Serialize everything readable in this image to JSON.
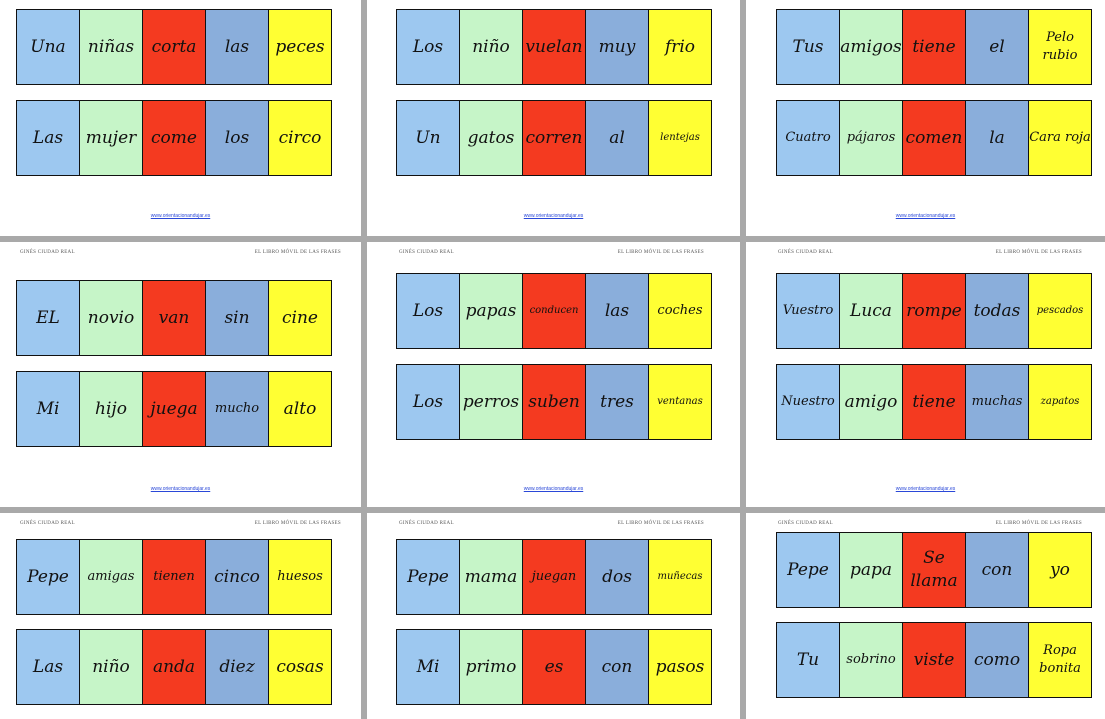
{
  "header": {
    "left": "GINÉS CIUDAD REAL",
    "right": "EL LIBRO MÓVIL DE LAS FRASES"
  },
  "footer_url": "www.orientacionandujar.es",
  "colors": [
    "#9dc8f0",
    "#c6f5c8",
    "#f43a20",
    "#8aaedb",
    "#ffff33"
  ],
  "pages": [
    {
      "strips": [
        [
          "Una",
          "niñas",
          "corta",
          "las",
          "peces"
        ],
        [
          "Las",
          "mujer",
          "come",
          "los",
          "circo"
        ]
      ]
    },
    {
      "strips": [
        [
          "Los",
          "niño",
          "vuelan",
          "muy",
          "frio"
        ],
        [
          "Un",
          "gatos",
          "corren",
          "al",
          "lentejas"
        ]
      ]
    },
    {
      "strips": [
        [
          "Tus",
          "amigos",
          "tiene",
          "el",
          "Pelo rubio"
        ],
        [
          "Cuatro",
          "pájaros",
          "comen",
          "la",
          "Cara roja"
        ]
      ]
    },
    {
      "strips": [
        [
          "EL",
          "novio",
          "van",
          "sin",
          "cine"
        ],
        [
          "Mi",
          "hijo",
          "juega",
          "mucho",
          "alto"
        ]
      ]
    },
    {
      "strips": [
        [
          "Los",
          "papas",
          "conducen",
          "las",
          "coches"
        ],
        [
          "Los",
          "perros",
          "suben",
          "tres",
          "ventanas"
        ]
      ]
    },
    {
      "strips": [
        [
          "Vuestro",
          "Luca",
          "rompe",
          "todas",
          "pescados"
        ],
        [
          "Nuestro",
          "amigo",
          "tiene",
          "muchas",
          "zapatos"
        ]
      ]
    },
    {
      "strips": [
        [
          "Pepe",
          "amigas",
          "tienen",
          "cinco",
          "huesos"
        ],
        [
          "Las",
          "niño",
          "anda",
          "diez",
          "cosas"
        ]
      ]
    },
    {
      "strips": [
        [
          "Pepe",
          "mama",
          "juegan",
          "dos",
          "muñecas"
        ],
        [
          "Mi",
          "primo",
          "es",
          "con",
          "pasos"
        ]
      ]
    },
    {
      "strips": [
        [
          "Pepe",
          "papa",
          "Se llama",
          "con",
          "yo"
        ],
        [
          "Tu",
          "sobrino",
          "viste",
          "como",
          "Ropa bonita"
        ]
      ]
    }
  ]
}
